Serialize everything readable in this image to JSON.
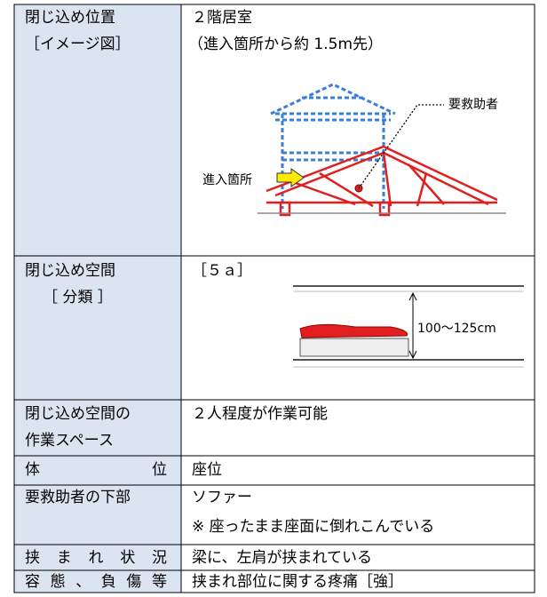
{
  "table": {
    "rows": [
      {
        "label": [
          "閉じ込め位置",
          "［イメージ図］"
        ],
        "content": [
          "２階居室",
          "（進入箇所から約 1.5m先）"
        ]
      },
      {
        "label": [
          "閉じ込め空間",
          "［ 分類 ］"
        ],
        "content": [
          "［５ａ］"
        ]
      },
      {
        "label": [
          "閉じ込め空間の",
          "作業スペース"
        ],
        "content": [
          "２人程度が作業可能"
        ]
      },
      {
        "label": [
          "体　位"
        ],
        "content": [
          "座位"
        ]
      },
      {
        "label": [
          "要救助者の下部"
        ],
        "content": [
          "ソファー",
          "※ 座ったまま座面に倒れこんでいる"
        ]
      },
      {
        "label": [
          "挟まれ状況"
        ],
        "content": [
          "梁に、左肩が挟まれている"
        ]
      },
      {
        "label": [
          "容態、負傷等"
        ],
        "content": [
          "挟まれ部位に関する疼痛［強］"
        ]
      }
    ]
  },
  "figure": {
    "victim": "要救助者",
    "entry": "進入箇所",
    "height": "100〜125cm"
  }
}
